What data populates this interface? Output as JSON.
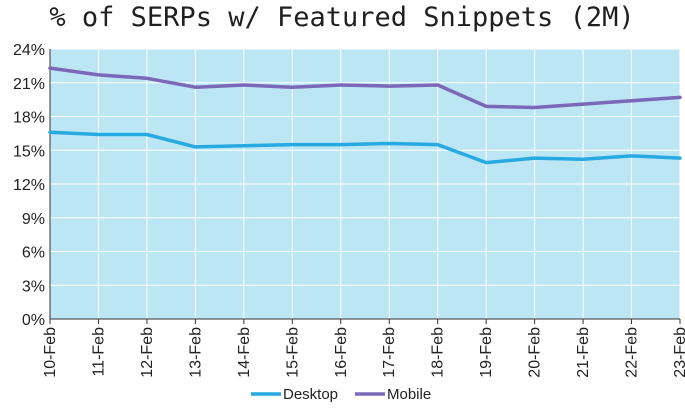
{
  "chart_data": {
    "type": "line",
    "title": "% of SERPs w/ Featured Snippets (2M)",
    "xlabel": "",
    "ylabel": "",
    "categories": [
      "10-Feb",
      "11-Feb",
      "12-Feb",
      "13-Feb",
      "14-Feb",
      "15-Feb",
      "16-Feb",
      "17-Feb",
      "18-Feb",
      "19-Feb",
      "20-Feb",
      "21-Feb",
      "22-Feb",
      "23-Feb"
    ],
    "y_ticks": [
      "0%",
      "3%",
      "6%",
      "9%",
      "12%",
      "15%",
      "18%",
      "21%",
      "24%"
    ],
    "ylim": [
      0,
      24
    ],
    "y_unit": "%",
    "grid": true,
    "legend_position": "bottom-center",
    "plot_background": "#bde6f4",
    "series": [
      {
        "name": "Desktop",
        "color": "#27a9e1",
        "values": [
          16.6,
          16.4,
          16.4,
          15.3,
          15.4,
          15.5,
          15.5,
          15.6,
          15.5,
          13.9,
          14.3,
          14.2,
          14.5,
          14.3
        ]
      },
      {
        "name": "Mobile",
        "color": "#7b68b8",
        "values": [
          22.3,
          21.7,
          21.4,
          20.6,
          20.8,
          20.6,
          20.8,
          20.7,
          20.8,
          18.9,
          18.8,
          19.1,
          19.4,
          19.7
        ]
      }
    ]
  }
}
